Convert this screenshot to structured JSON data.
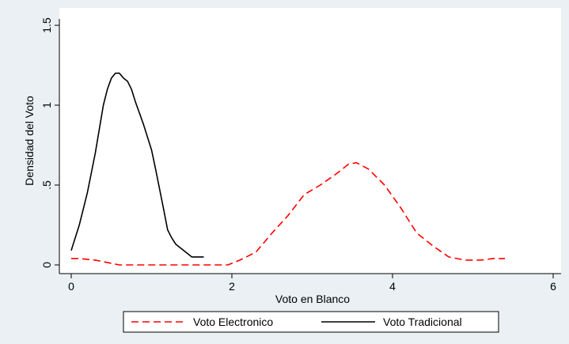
{
  "chart_data": {
    "type": "line",
    "title": "",
    "xlabel": "Voto en Blanco",
    "ylabel": "Densidad del Voto",
    "xlim": [
      0,
      6
    ],
    "ylim": [
      0,
      1.5
    ],
    "x_ticks": [
      "0",
      "2",
      "4",
      "6"
    ],
    "y_ticks": [
      "0",
      ".5",
      "1",
      "1.5"
    ],
    "grid": false,
    "legend_position": "bottom",
    "series": [
      {
        "name": "Voto Electronico",
        "color": "#ff0000",
        "style": "dashed",
        "x": [
          0.0,
          0.1,
          0.3,
          0.5,
          0.6,
          0.8,
          1.0,
          1.2,
          1.4,
          1.6,
          1.8,
          1.95,
          2.1,
          2.3,
          2.5,
          2.7,
          2.9,
          3.1,
          3.3,
          3.45,
          3.55,
          3.7,
          3.9,
          4.1,
          4.3,
          4.5,
          4.7,
          4.9,
          5.1,
          5.25,
          5.4
        ],
        "y": [
          0.04,
          0.04,
          0.03,
          0.01,
          0.0,
          0.0,
          0.0,
          0.0,
          0.0,
          0.0,
          0.0,
          0.0,
          0.03,
          0.08,
          0.2,
          0.31,
          0.44,
          0.5,
          0.57,
          0.63,
          0.64,
          0.6,
          0.5,
          0.36,
          0.2,
          0.12,
          0.05,
          0.03,
          0.03,
          0.04,
          0.04
        ]
      },
      {
        "name": "Voto Tradicional",
        "color": "#000000",
        "style": "solid",
        "x": [
          0.0,
          0.1,
          0.2,
          0.3,
          0.35,
          0.4,
          0.45,
          0.5,
          0.55,
          0.6,
          0.65,
          0.7,
          0.75,
          0.8,
          0.9,
          1.0,
          1.05,
          1.15,
          1.2,
          1.25,
          1.3,
          1.4,
          1.5,
          1.55,
          1.6,
          1.65
        ],
        "y": [
          0.09,
          0.25,
          0.45,
          0.7,
          0.85,
          1.0,
          1.1,
          1.17,
          1.2,
          1.2,
          1.17,
          1.15,
          1.1,
          1.02,
          0.88,
          0.72,
          0.6,
          0.35,
          0.22,
          0.17,
          0.13,
          0.09,
          0.05,
          0.05,
          0.05,
          0.05
        ]
      }
    ]
  }
}
